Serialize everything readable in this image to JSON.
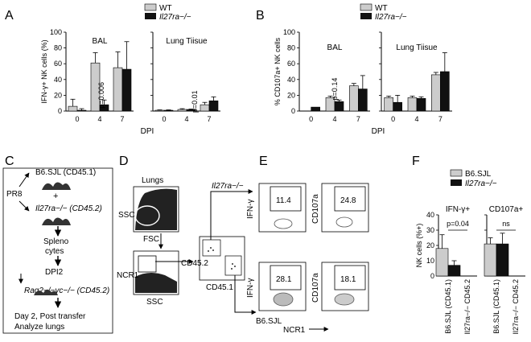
{
  "panels": {
    "A": "A",
    "B": "B",
    "C": "C",
    "D": "D",
    "E": "E",
    "F": "F"
  },
  "colors": {
    "wt": "#cccccc",
    "ko": "#111111",
    "axis": "#000000"
  },
  "legend_ab": {
    "wt": "WT",
    "ko": "Il27ra−/−"
  },
  "legend_f": {
    "wt": "B6.SJL",
    "ko": "Il27ra−/−"
  },
  "panel_c": {
    "pr8": "PR8",
    "donor1": "B6.SJL (CD45.1)",
    "plus": "+",
    "donor2": "Il27ra−/− (CD45.2)",
    "spleno": "Spleno",
    "cytes": "cytes",
    "dpi2": "DPI2",
    "recipient": "Rag2−/−γc−/− (CD45.2)",
    "day2": "Day 2, Post transfer",
    "analyze": "Analyze lungs"
  },
  "panel_d": {
    "lungs": "Lungs",
    "ssc": "SSC",
    "fsc": "FSC",
    "ncr1": "NCR1",
    "ssc2": "SSC",
    "cd452": "CD45.2",
    "cd451": "CD45.1",
    "il27": "Il27ra−/−",
    "b6": "B6.SJL"
  },
  "panel_e": {
    "ifng": "IFN-γ",
    "cd107a": "CD107a",
    "ncr1": "NCR1",
    "gates": [
      "11.4",
      "24.8",
      "28.1",
      "18.1"
    ]
  },
  "chart_data": [
    {
      "panel": "A",
      "type": "bar",
      "ylabel": "IFN-γ+ NK cells (%)",
      "xlabel": "DPI",
      "ylim": [
        0,
        100
      ],
      "yticks": [
        0,
        20,
        40,
        60,
        80,
        100
      ],
      "groups": [
        {
          "title": "BAL",
          "categories": [
            "0",
            "4",
            "7"
          ],
          "series": [
            {
              "name": "WT",
              "values": [
                6,
                61,
                55
              ],
              "err": [
                9,
                13,
                20
              ]
            },
            {
              "name": "Il27ra−/−",
              "values": [
                1,
                8,
                53
              ],
              "err": [
                2,
                6,
                35
              ]
            }
          ],
          "annotations": [
            "p=0.006"
          ]
        },
        {
          "title": "Lung Tiisue",
          "categories": [
            "0",
            "4",
            "7"
          ],
          "series": [
            {
              "name": "WT",
              "values": [
                1,
                2,
                8
              ],
              "err": [
                0.5,
                1,
                3
              ]
            },
            {
              "name": "Il27ra−/−",
              "values": [
                1,
                2,
                13
              ],
              "err": [
                0.5,
                0.5,
                5
              ]
            }
          ],
          "annotations": [
            "p=0.01"
          ]
        }
      ]
    },
    {
      "panel": "B",
      "type": "bar",
      "ylabel": "% CD107a+ NK cells",
      "xlabel": "DPI",
      "ylim": [
        0,
        100
      ],
      "yticks": [
        0,
        20,
        40,
        60,
        80,
        100
      ],
      "groups": [
        {
          "title": "BAL",
          "categories": [
            "0",
            "4",
            "7"
          ],
          "series": [
            {
              "name": "WT",
              "values": [
                0,
                17,
                32
              ],
              "err": [
                0,
                2,
                3
              ]
            },
            {
              "name": "Il27ra−/−",
              "values": [
                5,
                12,
                28
              ],
              "err": [
                0,
                2,
                17
              ]
            }
          ],
          "annotations": [
            "p=0.14"
          ]
        },
        {
          "title": "Lung Tiisue",
          "categories": [
            "0",
            "4",
            "7"
          ],
          "series": [
            {
              "name": "WT",
              "values": [
                17,
                17,
                46
              ],
              "err": [
                2,
                2,
                3
              ]
            },
            {
              "name": "Il27ra−/−",
              "values": [
                11,
                16,
                50
              ],
              "err": [
                9,
                2,
                24
              ]
            }
          ],
          "annotations": []
        }
      ]
    },
    {
      "panel": "F",
      "type": "bar",
      "ylabel": "NK cells (%+)",
      "ylim": [
        0,
        40
      ],
      "yticks": [
        0,
        10,
        20,
        30,
        40
      ],
      "groups": [
        {
          "title": "IFN-γ+",
          "categories": [
            "B6.SJL (CD45.1)",
            "Il27ra−/− CD45.2"
          ],
          "series": [
            {
              "name": "B6.SJL",
              "values": [
                18
              ],
              "err": [
                9
              ]
            },
            {
              "name": "Il27ra−/−",
              "values": [
                7
              ],
              "err": [
                3
              ]
            }
          ],
          "annotations": [
            "p=0.04"
          ]
        },
        {
          "title": "CD107a+",
          "categories": [
            "B6.SJL (CD45.1)",
            "Il27ra−/− CD45.2"
          ],
          "series": [
            {
              "name": "B6.SJL",
              "values": [
                21
              ],
              "err": [
                4
              ]
            },
            {
              "name": "Il27ra−/−",
              "values": [
                21
              ],
              "err": [
                7
              ]
            }
          ],
          "annotations": [
            "ns"
          ]
        }
      ]
    }
  ]
}
